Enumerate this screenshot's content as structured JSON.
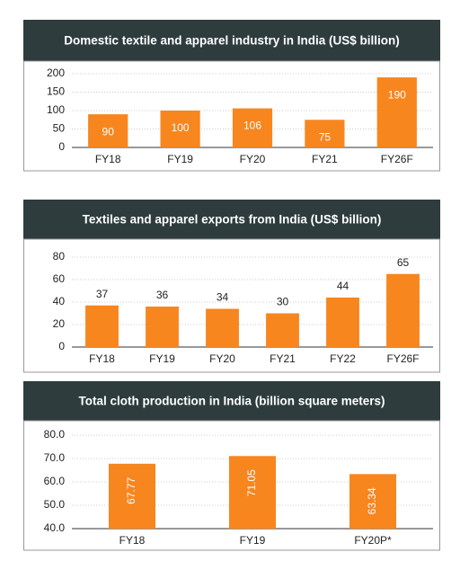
{
  "chart_data": [
    {
      "type": "bar",
      "title": "Domestic textile and apparel industry in India (US$ billion)",
      "categories": [
        "FY18",
        "FY19",
        "FY20",
        "FY21",
        "FY26F"
      ],
      "values": [
        90,
        100,
        106,
        75,
        190
      ],
      "color": "#f7861f",
      "ylim": [
        0,
        200
      ],
      "yticks": [
        0,
        50,
        100,
        150,
        200
      ],
      "grid": true
    },
    {
      "type": "bar",
      "title": "Textiles and apparel exports from India (US$ billion)",
      "categories": [
        "FY18",
        "FY19",
        "FY20",
        "FY21",
        "FY22",
        "FY26F"
      ],
      "values": [
        37,
        36,
        34,
        30,
        44,
        65
      ],
      "color": "#f7861f",
      "ylim": [
        0,
        80
      ],
      "yticks": [
        0,
        20,
        40,
        60,
        80
      ],
      "grid": true
    },
    {
      "type": "bar",
      "title": "Total cloth production in India (billion square meters)",
      "categories": [
        "FY18",
        "FY19",
        "FY20P*"
      ],
      "values": [
        67.77,
        71.05,
        63.34
      ],
      "color": "#f7861f",
      "ylim": [
        40,
        80
      ],
      "yticks": [
        {
          "value": 40,
          "label": "40.0"
        },
        {
          "value": 50,
          "label": "50.0"
        },
        {
          "value": 60,
          "label": "60.0"
        },
        {
          "value": 70,
          "label": "70.0"
        },
        {
          "value": 80,
          "label": "80.0"
        }
      ],
      "grid": true
    }
  ]
}
